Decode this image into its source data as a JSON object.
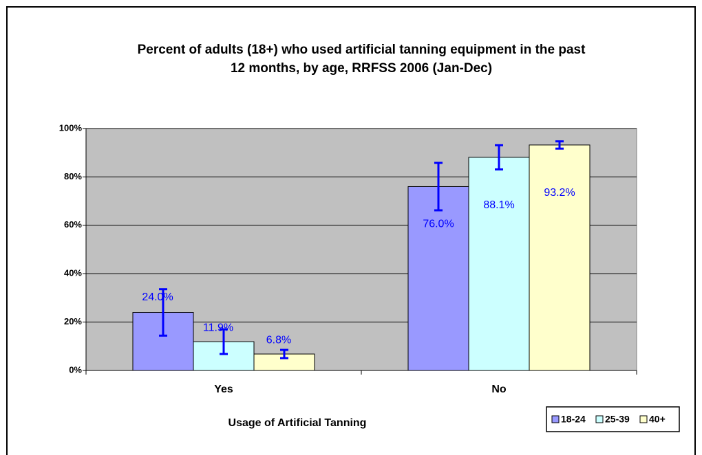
{
  "chart_data": {
    "type": "bar",
    "title": [
      "Percent of adults (18+) who used artificial tanning equipment in the past",
      "12 months, by age, RRFSS 2006 (Jan-Dec)"
    ],
    "x_label": "Usage of Artificial Tanning",
    "categories": [
      "Yes",
      "No"
    ],
    "series": [
      {
        "name": "18-24",
        "color": "#9999ff",
        "values": [
          24.0,
          76.0
        ],
        "value_labels": [
          "24.0%",
          "76.0%"
        ],
        "errors": [
          9.6,
          9.8
        ]
      },
      {
        "name": "25-39",
        "color": "#ccffff",
        "values": [
          11.9,
          88.1
        ],
        "value_labels": [
          "11.9%",
          "88.1%"
        ],
        "errors": [
          5.1,
          5.0
        ]
      },
      {
        "name": "40+",
        "color": "#ffffcc",
        "values": [
          6.8,
          93.2
        ],
        "value_labels": [
          "6.8%",
          "93.2%"
        ],
        "errors": [
          1.7,
          1.5
        ]
      }
    ],
    "error_color": "#0000ff",
    "label_color": "#0000ff",
    "plot_background": "#c0c0c0",
    "ylim": [
      0,
      100
    ],
    "yticks": [
      {
        "value": 0,
        "label": "0%"
      },
      {
        "value": 20,
        "label": "20%"
      },
      {
        "value": 40,
        "label": "40%"
      },
      {
        "value": 60,
        "label": "60%"
      },
      {
        "value": 80,
        "label": "80%"
      },
      {
        "value": 100,
        "label": "100%"
      }
    ],
    "grid": true,
    "legend": "bottom-right"
  }
}
